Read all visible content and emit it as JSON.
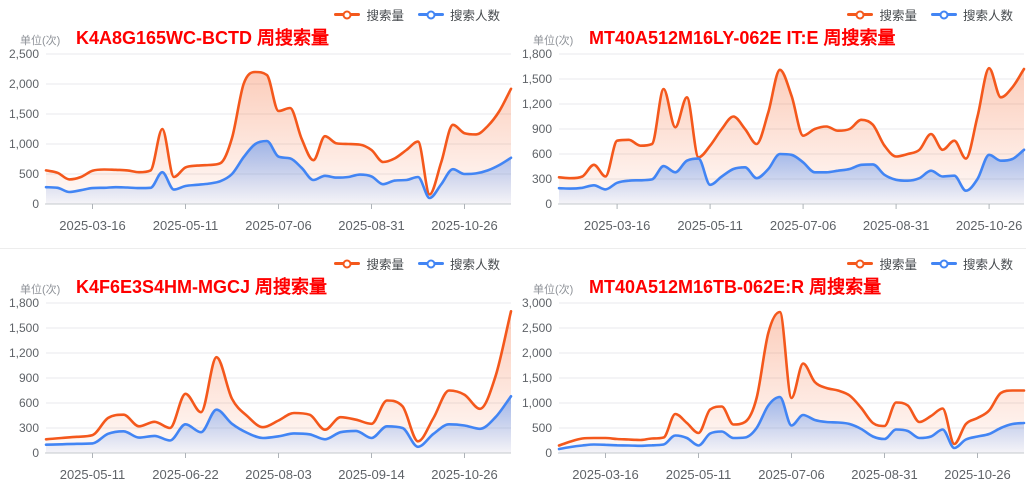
{
  "page": {
    "background": "#ffffff",
    "title_color": "#ff0000",
    "axis_text_color": "#5f6368"
  },
  "chart_data": [
    {
      "type": "area",
      "title": "K4A8G165WC-BCTD 周搜索量",
      "title_color": "#ff0000",
      "unit_label": "单位(次)",
      "legend_position": "top-right",
      "grid": true,
      "ylim": [
        0,
        2500
      ],
      "y_tick_labels": [
        "0",
        "500",
        "1,000",
        "1,500",
        "2,000",
        "2,500"
      ],
      "x_tick_labels": [
        "2025-03-16",
        "2025-05-11",
        "2025-07-06",
        "2025-08-31",
        "2025-10-26"
      ],
      "x_tick_indices": [
        4,
        12,
        20,
        28,
        36
      ],
      "series": [
        {
          "name": "搜索量",
          "color": "#f4581c",
          "values": [
            560,
            520,
            410,
            450,
            555,
            575,
            570,
            560,
            530,
            560,
            1250,
            450,
            610,
            640,
            650,
            680,
            1100,
            2000,
            2200,
            2150,
            1550,
            1600,
            1080,
            730,
            1130,
            1010,
            1000,
            990,
            900,
            700,
            760,
            900,
            1040,
            160,
            700,
            1320,
            1180,
            1160,
            1300,
            1550,
            1920
          ]
        },
        {
          "name": "搜索人数",
          "color": "#4285f4",
          "values": [
            280,
            270,
            200,
            230,
            265,
            270,
            280,
            275,
            265,
            270,
            530,
            240,
            300,
            320,
            340,
            380,
            500,
            780,
            1000,
            1050,
            790,
            760,
            600,
            400,
            470,
            440,
            450,
            490,
            460,
            330,
            390,
            400,
            450,
            100,
            330,
            580,
            500,
            510,
            560,
            650,
            770
          ]
        }
      ]
    },
    {
      "type": "area",
      "title": "MT40A512M16LY-062E IT:E 周搜索量",
      "title_color": "#ff0000",
      "unit_label": "单位(次)",
      "legend_position": "top-right",
      "grid": true,
      "ylim": [
        0,
        1800
      ],
      "y_tick_labels": [
        "0",
        "300",
        "600",
        "900",
        "1,200",
        "1,500",
        "1,800"
      ],
      "x_tick_labels": [
        "2025-03-16",
        "2025-05-11",
        "2025-07-06",
        "2025-08-31",
        "2025-10-26"
      ],
      "x_tick_indices": [
        5,
        13,
        21,
        29,
        37
      ],
      "series": [
        {
          "name": "搜索量",
          "color": "#f4581c",
          "values": [
            320,
            310,
            330,
            470,
            330,
            760,
            770,
            700,
            720,
            1380,
            920,
            1280,
            560,
            700,
            900,
            1050,
            900,
            720,
            1100,
            1610,
            1300,
            820,
            900,
            930,
            880,
            900,
            1010,
            950,
            700,
            570,
            600,
            650,
            840,
            650,
            760,
            545,
            1050,
            1630,
            1280,
            1400,
            1620
          ]
        },
        {
          "name": "搜索人数",
          "color": "#4285f4",
          "values": [
            190,
            185,
            195,
            225,
            175,
            255,
            280,
            285,
            295,
            455,
            380,
            520,
            545,
            230,
            330,
            420,
            440,
            310,
            420,
            600,
            590,
            500,
            380,
            380,
            400,
            420,
            470,
            475,
            350,
            290,
            280,
            310,
            400,
            330,
            340,
            160,
            300,
            590,
            520,
            540,
            650
          ]
        }
      ]
    },
    {
      "type": "area",
      "title": "K4F6E3S4HM-MGCJ 周搜索量",
      "title_color": "#ff0000",
      "unit_label": "单位(次)",
      "legend_position": "top-right",
      "grid": true,
      "ylim": [
        0,
        1800
      ],
      "y_tick_labels": [
        "0",
        "300",
        "600",
        "900",
        "1,200",
        "1,500",
        "1,800"
      ],
      "x_tick_labels": [
        "2025-05-11",
        "2025-06-22",
        "2025-08-03",
        "2025-09-14",
        "2025-10-26"
      ],
      "x_tick_indices": [
        3,
        9,
        15,
        21,
        27
      ],
      "series": [
        {
          "name": "搜索量",
          "color": "#f4581c",
          "values": [
            165,
            180,
            195,
            215,
            420,
            460,
            320,
            375,
            300,
            710,
            490,
            1150,
            650,
            440,
            310,
            390,
            480,
            460,
            280,
            430,
            400,
            350,
            630,
            560,
            140,
            420,
            750,
            700,
            530,
            920,
            1700
          ]
        },
        {
          "name": "搜索人数",
          "color": "#4285f4",
          "values": [
            100,
            105,
            110,
            115,
            230,
            260,
            185,
            205,
            150,
            345,
            250,
            520,
            350,
            240,
            180,
            200,
            235,
            225,
            165,
            250,
            265,
            180,
            320,
            300,
            75,
            230,
            345,
            330,
            290,
            430,
            680
          ]
        }
      ]
    },
    {
      "type": "area",
      "title": "MT40A512M16TB-062E:R 周搜索量",
      "title_color": "#ff0000",
      "unit_label": "单位(次)",
      "legend_position": "top-right",
      "grid": true,
      "ylim": [
        0,
        3000
      ],
      "y_tick_labels": [
        "0",
        "500",
        "1,000",
        "1,500",
        "2,000",
        "2,500",
        "3,000"
      ],
      "x_tick_labels": [
        "2025-03-16",
        "2025-05-11",
        "2025-07-06",
        "2025-08-31",
        "2025-10-26"
      ],
      "x_tick_indices": [
        4,
        12,
        20,
        28,
        36
      ],
      "series": [
        {
          "name": "搜索量",
          "color": "#f4581c",
          "values": [
            150,
            230,
            290,
            300,
            300,
            280,
            270,
            260,
            290,
            310,
            780,
            600,
            400,
            870,
            930,
            570,
            620,
            1100,
            2400,
            2820,
            1100,
            1790,
            1420,
            1300,
            1250,
            1150,
            900,
            600,
            540,
            1010,
            950,
            620,
            740,
            890,
            180,
            580,
            700,
            850,
            1200,
            1250,
            1250
          ]
        },
        {
          "name": "搜索人数",
          "color": "#4285f4",
          "values": [
            80,
            120,
            150,
            170,
            165,
            155,
            150,
            145,
            155,
            170,
            350,
            300,
            150,
            390,
            430,
            300,
            310,
            500,
            950,
            1120,
            550,
            760,
            660,
            620,
            610,
            580,
            480,
            330,
            280,
            470,
            440,
            300,
            330,
            470,
            100,
            270,
            330,
            380,
            500,
            580,
            600
          ]
        }
      ]
    }
  ]
}
